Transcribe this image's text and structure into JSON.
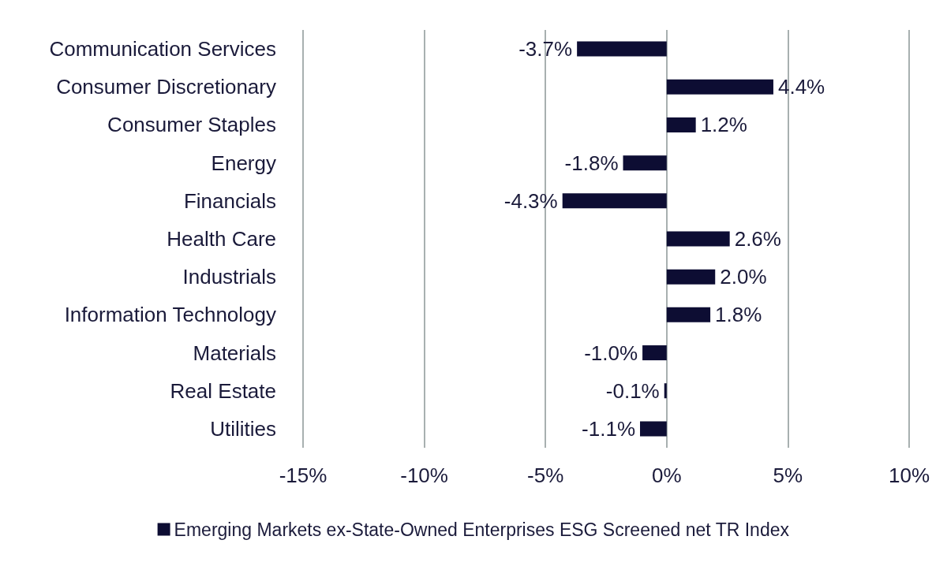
{
  "chart_data": {
    "type": "bar",
    "orientation": "horizontal",
    "categories": [
      "Communication Services",
      "Consumer Discretionary",
      "Consumer Staples",
      "Energy",
      "Financials",
      "Health Care",
      "Industrials",
      "Information Technology",
      "Materials",
      "Real Estate",
      "Utilities"
    ],
    "series": [
      {
        "name": "Emerging Markets ex-State-Owned Enterprises ESG Screened net TR Index",
        "color": "#0d0d33",
        "values": [
          -3.7,
          4.4,
          1.2,
          -1.8,
          -4.3,
          2.6,
          2.0,
          1.8,
          -1.0,
          -0.1,
          -1.1
        ],
        "value_labels": [
          "-3.7%",
          "4.4%",
          "1.2%",
          "-1.8%",
          "-4.3%",
          "2.6%",
          "2.0%",
          "1.8%",
          "-1.0%",
          "-0.1%",
          "-1.1%"
        ]
      }
    ],
    "xlim": [
      -15,
      10
    ],
    "xticks": [
      {
        "value": -15,
        "label": "-15%"
      },
      {
        "value": -10,
        "label": "-10%"
      },
      {
        "value": -5,
        "label": "-5%"
      },
      {
        "value": 0,
        "label": "0%"
      },
      {
        "value": 5,
        "label": "5%"
      },
      {
        "value": 10,
        "label": "10%"
      }
    ],
    "grid": "x",
    "legend": "bottom"
  }
}
